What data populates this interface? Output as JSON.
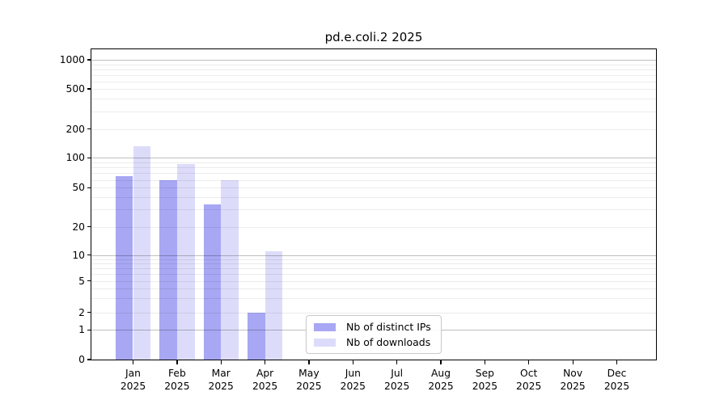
{
  "title": "pd.e.coli.2 2025",
  "chart_data": {
    "type": "bar",
    "title": "pd.e.coli.2 2025",
    "categories": [
      "Jan 2025",
      "Feb 2025",
      "Mar 2025",
      "Apr 2025",
      "May 2025",
      "Jun 2025",
      "Jul 2025",
      "Aug 2025",
      "Sep 2025",
      "Oct 2025",
      "Nov 2025",
      "Dec 2025"
    ],
    "series": [
      {
        "name": "Nb of distinct IPs",
        "color": "#a7a7f3",
        "values": [
          66,
          60,
          34,
          2,
          0,
          0,
          0,
          0,
          0,
          0,
          0,
          0
        ]
      },
      {
        "name": "Nb of downloads",
        "color": "#dcdcfa",
        "values": [
          133,
          86,
          60,
          11,
          0,
          0,
          0,
          0,
          0,
          0,
          0,
          0
        ]
      }
    ],
    "xlabel": "",
    "ylabel": "",
    "yscale": "log-with-zero-baseline",
    "ylim": [
      0,
      1300
    ],
    "yticks": [
      0,
      1,
      2,
      5,
      10,
      20,
      50,
      100,
      200,
      500,
      1000
    ],
    "ytick_labels": [
      "0",
      "1",
      "2",
      "5",
      "10",
      "20",
      "50",
      "100",
      "200",
      "500",
      "1000"
    ],
    "grid": "horizontal, major decades darker, minor 2-9 per decade lighter",
    "legend_position": "lower center inside plot"
  }
}
